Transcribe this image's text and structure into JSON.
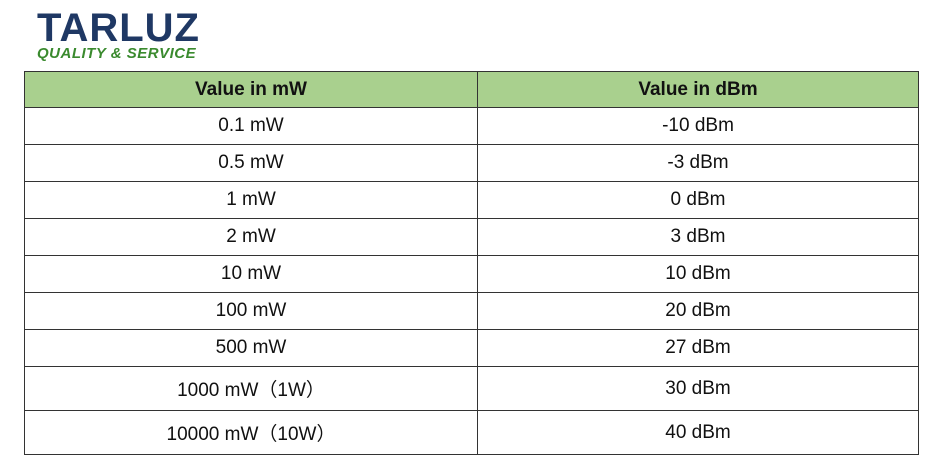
{
  "header": {
    "logo": "TARLUZ",
    "tagline": "QUALITY & SERVICE"
  },
  "table": {
    "columns": [
      "Value in mW",
      "Value in dBm"
    ],
    "rows": [
      [
        "0.1 mW",
        "-10 dBm"
      ],
      [
        "0.5 mW",
        "-3 dBm"
      ],
      [
        "1 mW",
        "0 dBm"
      ],
      [
        "2 mW",
        "3 dBm"
      ],
      [
        "10 mW",
        "10 dBm"
      ],
      [
        "100 mW",
        "20 dBm"
      ],
      [
        "500 mW",
        "27 dBm"
      ],
      [
        "1000 mW（1W）",
        "30 dBm"
      ],
      [
        "10000 mW（10W）",
        "40 dBm"
      ]
    ]
  }
}
